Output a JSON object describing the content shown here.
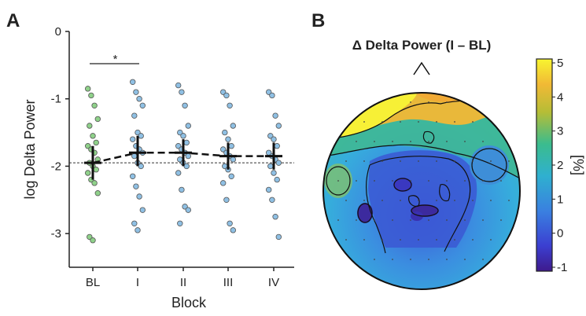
{
  "panel_a_label": "A",
  "panel_b_label": "B",
  "chart_data": [
    {
      "type": "scatter",
      "xlabel": "Block",
      "ylabel": "log Delta Power",
      "categories": [
        "BL",
        "I",
        "II",
        "III",
        "IV"
      ],
      "ylim": [
        -3.5,
        0
      ],
      "yticks": [
        0,
        -1,
        -2,
        -3
      ],
      "baseline": -1.95,
      "significance": {
        "from": "BL",
        "to": "I",
        "label": "*"
      },
      "group_means": [
        -1.95,
        -1.8,
        -1.8,
        -1.85,
        -1.85
      ],
      "error_bars": [
        {
          "low": -2.2,
          "high": -1.7
        },
        {
          "low": -2.0,
          "high": -1.55
        },
        {
          "low": -2.0,
          "high": -1.6
        },
        {
          "low": -2.05,
          "high": -1.65
        },
        {
          "low": -2.05,
          "high": -1.65
        }
      ],
      "series": [
        {
          "category": "BL",
          "color": "#8fd18a",
          "values": [
            -0.85,
            -0.95,
            -1.1,
            -1.3,
            -1.4,
            -1.55,
            -1.65,
            -1.7,
            -1.75,
            -1.8,
            -1.9,
            -1.95,
            -2.0,
            -2.05,
            -2.1,
            -2.2,
            -2.25,
            -2.4,
            -3.05,
            -3.1
          ]
        },
        {
          "category": "I",
          "color": "#8fc0e4",
          "values": [
            -0.75,
            -0.9,
            -1.0,
            -1.1,
            -1.25,
            -1.5,
            -1.55,
            -1.6,
            -1.7,
            -1.75,
            -1.8,
            -1.85,
            -1.95,
            -2.0,
            -2.15,
            -2.3,
            -2.45,
            -2.65,
            -2.85,
            -2.95
          ]
        },
        {
          "category": "II",
          "color": "#8fc0e4",
          "values": [
            -0.8,
            -0.9,
            -1.1,
            -1.4,
            -1.5,
            -1.55,
            -1.65,
            -1.7,
            -1.75,
            -1.8,
            -1.85,
            -1.9,
            -1.95,
            -2.0,
            -2.1,
            -2.35,
            -2.6,
            -2.65,
            -2.85
          ]
        },
        {
          "category": "III",
          "color": "#8fc0e4",
          "values": [
            -0.9,
            -0.95,
            -1.1,
            -1.4,
            -1.5,
            -1.6,
            -1.7,
            -1.75,
            -1.8,
            -1.85,
            -1.9,
            -2.0,
            -2.05,
            -2.15,
            -2.25,
            -2.5,
            -2.85,
            -2.95
          ]
        },
        {
          "category": "IV",
          "color": "#8fc0e4",
          "values": [
            -0.9,
            -0.95,
            -1.25,
            -1.4,
            -1.55,
            -1.6,
            -1.7,
            -1.8,
            -1.85,
            -1.9,
            -1.95,
            -2.0,
            -2.1,
            -2.2,
            -2.35,
            -2.5,
            -2.75,
            -3.05
          ]
        }
      ]
    },
    {
      "type": "heatmap",
      "title": "Δ Delta Power (I – BL)",
      "colorbar": {
        "label": "[%]",
        "range": [
          -1,
          5
        ],
        "ticks": [
          5,
          4,
          3,
          2,
          1,
          0,
          -1
        ]
      },
      "colors": {
        "high": "#f7f036",
        "mid_high": "#f4b632",
        "mid": "#3bb6a8",
        "mid_low": "#3ea8df",
        "low": "#3b46c4",
        "min": "#3b1a8a"
      }
    }
  ]
}
